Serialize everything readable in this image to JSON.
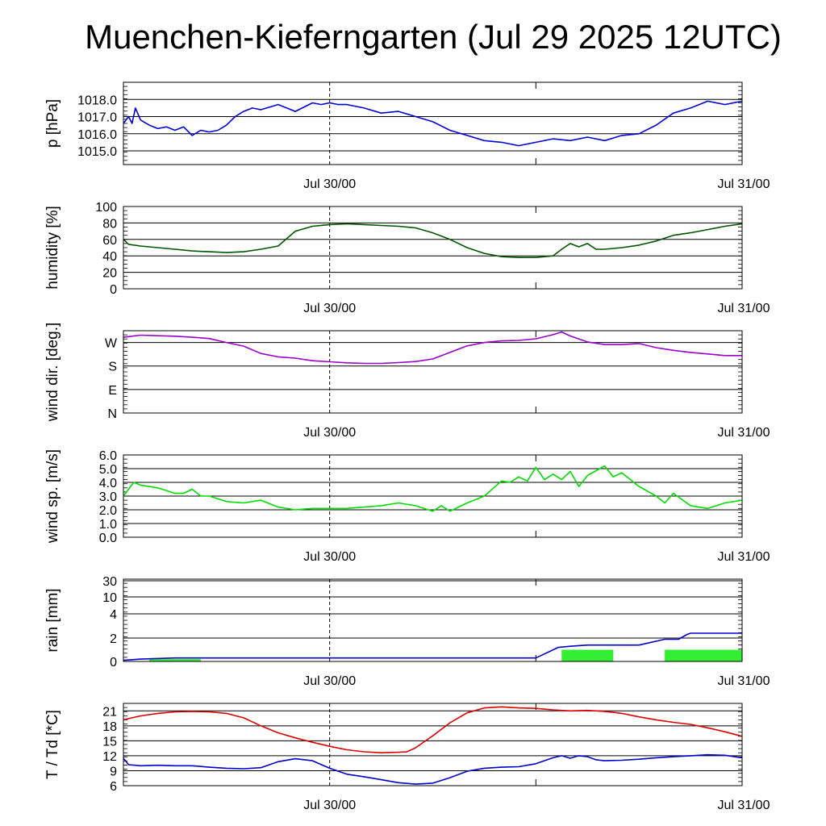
{
  "title": "Muenchen-Kieferngarten (Jul 29 2025 12UTC)",
  "colors": {
    "pressure": "#0000dd",
    "humidity": "#005500",
    "wind_dir": "#9900cc",
    "wind_speed": "#00dd00",
    "rain_line": "#0000cc",
    "rain_bar": "#33ee33",
    "temperature": "#dd0000",
    "dewpoint": "#0000cc"
  },
  "chart_data": [
    {
      "type": "line",
      "ylabel": "p [hPa]",
      "x_ticks": [
        "Jul 30/00",
        "Jul 31/00"
      ],
      "x_unit": "hours since Jul 29 12UTC",
      "xlim": [
        0,
        36
      ],
      "ylim": [
        1014.2,
        1019.0
      ],
      "yticks": [
        "1015.0",
        "1016.0",
        "1017.0",
        "1018.0"
      ],
      "ytick_values": [
        1015.0,
        1016.0,
        1017.0,
        1018.0
      ],
      "series": [
        {
          "x": [
            0,
            0.3,
            0.5,
            0.7,
            1,
            1.5,
            2,
            2.5,
            3,
            3.5,
            4,
            4.5,
            5,
            5.5,
            6,
            6.5,
            7,
            7.5,
            8,
            9,
            10,
            11,
            11.5,
            12,
            12.5,
            13,
            14,
            15,
            16,
            17,
            18,
            19,
            20,
            21,
            22,
            23,
            24,
            25,
            26,
            27,
            28,
            29,
            30,
            31,
            32,
            33,
            34,
            35,
            36
          ],
          "y": [
            1016.6,
            1017.0,
            1016.6,
            1017.5,
            1016.8,
            1016.5,
            1016.3,
            1016.4,
            1016.2,
            1016.4,
            1015.9,
            1016.2,
            1016.1,
            1016.2,
            1016.5,
            1017.0,
            1017.3,
            1017.5,
            1017.4,
            1017.7,
            1017.3,
            1017.8,
            1017.7,
            1017.8,
            1017.7,
            1017.7,
            1017.5,
            1017.2,
            1017.3,
            1017.0,
            1016.7,
            1016.2,
            1015.9,
            1015.6,
            1015.5,
            1015.3,
            1015.5,
            1015.7,
            1015.6,
            1015.8,
            1015.6,
            1015.9,
            1016.0,
            1016.5,
            1017.2,
            1017.5,
            1017.9,
            1017.7,
            1017.9
          ]
        }
      ]
    },
    {
      "type": "line",
      "ylabel": "humidity [%]",
      "x_ticks": [
        "Jul 30/00",
        "Jul 31/00"
      ],
      "xlim": [
        0,
        36
      ],
      "ylim": [
        0,
        100
      ],
      "yticks": [
        "0",
        "20",
        "40",
        "60",
        "80",
        "100"
      ],
      "ytick_values": [
        0,
        20,
        40,
        60,
        80,
        100
      ],
      "series": [
        {
          "x": [
            0,
            0.3,
            1,
            2,
            3,
            4,
            5,
            6,
            7,
            8,
            9,
            10,
            11,
            12,
            13,
            14,
            15,
            16,
            17,
            18,
            19,
            20,
            21,
            22,
            23,
            24,
            25,
            25.5,
            26,
            26.5,
            27,
            27.5,
            28,
            29,
            30,
            31,
            32,
            33,
            34,
            35,
            36
          ],
          "y": [
            60,
            54,
            52,
            50,
            48,
            46,
            45,
            44,
            45,
            48,
            52,
            70,
            76,
            78,
            79,
            78,
            77,
            76,
            74,
            68,
            60,
            50,
            43,
            39,
            38,
            38,
            40,
            48,
            55,
            51,
            55,
            48,
            48,
            50,
            53,
            58,
            65,
            68,
            72,
            76,
            79
          ]
        }
      ]
    },
    {
      "type": "line",
      "ylabel": "wind dir. [deg.]",
      "x_ticks": [
        "Jul 30/00",
        "Jul 31/00"
      ],
      "xlim": [
        0,
        36
      ],
      "ylim": [
        0,
        315
      ],
      "yticks": [
        "N",
        "E",
        "S",
        "W"
      ],
      "ytick_values": [
        0,
        90,
        180,
        270
      ],
      "series": [
        {
          "x": [
            0,
            1,
            2,
            3,
            4,
            5,
            6,
            7,
            8,
            9,
            10,
            11,
            12,
            13,
            14,
            15,
            16,
            17,
            18,
            19,
            20,
            21,
            22,
            23,
            24,
            25,
            25.5,
            26,
            27,
            28,
            29,
            30,
            31,
            32,
            33,
            34,
            35,
            36
          ],
          "y": [
            290,
            298,
            296,
            294,
            290,
            285,
            270,
            256,
            228,
            215,
            210,
            200,
            196,
            192,
            190,
            190,
            193,
            197,
            207,
            232,
            257,
            270,
            276,
            278,
            284,
            300,
            310,
            295,
            272,
            262,
            262,
            266,
            250,
            240,
            232,
            226,
            220,
            220
          ]
        }
      ]
    },
    {
      "type": "line",
      "ylabel": "wind sp. [m/s]",
      "x_ticks": [
        "Jul 30/00",
        "Jul 31/00"
      ],
      "xlim": [
        0,
        36
      ],
      "ylim": [
        0,
        6
      ],
      "yticks": [
        "0.0",
        "1.0",
        "2.0",
        "3.0",
        "4.0",
        "5.0",
        "6.0"
      ],
      "ytick_values": [
        0,
        1,
        2,
        3,
        4,
        5,
        6
      ],
      "series": [
        {
          "x": [
            0,
            0.3,
            0.6,
            1,
            2,
            3,
            3.5,
            4,
            4.5,
            5,
            6,
            7,
            8,
            9,
            10,
            11,
            12,
            13,
            14,
            15,
            16,
            17,
            18,
            18.5,
            19,
            19.5,
            20,
            21,
            22,
            22.5,
            23,
            23.5,
            24,
            24.5,
            25,
            25.5,
            26,
            26.5,
            27,
            28,
            28.5,
            29,
            30,
            31,
            31.5,
            32,
            33,
            34,
            35,
            36
          ],
          "y": [
            3.0,
            3.5,
            4.0,
            3.8,
            3.6,
            3.2,
            3.2,
            3.5,
            3.0,
            3.0,
            2.6,
            2.5,
            2.7,
            2.2,
            2.0,
            2.1,
            2.1,
            2.1,
            2.2,
            2.3,
            2.5,
            2.3,
            1.9,
            2.3,
            1.9,
            2.2,
            2.5,
            3.0,
            4.1,
            4.0,
            4.4,
            4.1,
            5.1,
            4.2,
            4.6,
            4.2,
            4.8,
            3.7,
            4.5,
            5.2,
            4.4,
            4.7,
            3.7,
            3.0,
            2.5,
            3.2,
            2.3,
            2.1,
            2.5,
            2.7
          ]
        }
      ]
    },
    {
      "type": "bar",
      "ylabel": "rain [mm]",
      "x_ticks": [
        "Jul 30/00",
        "Jul 31/00"
      ],
      "xlim": [
        0,
        36
      ],
      "yscale": "nonlinear",
      "yticks": [
        "0",
        "2",
        "4",
        "10",
        "30"
      ],
      "ytick_values": [
        0,
        2,
        4,
        10,
        30
      ],
      "series": [
        {
          "type": "line",
          "x": [
            0,
            1,
            3,
            12,
            24,
            25.3,
            26,
            27,
            30,
            31.5,
            32.3,
            32.8,
            33,
            36
          ],
          "y": [
            0.1,
            0.2,
            0.3,
            0.3,
            0.3,
            1.2,
            1.3,
            1.4,
            1.4,
            1.9,
            1.9,
            2.3,
            2.4,
            2.4
          ]
        },
        {
          "type": "bar",
          "x_start": [
            1.5,
            25.5,
            31.5
          ],
          "x_end": [
            4.5,
            28.5,
            36.0
          ],
          "values": [
            0.2,
            1.0,
            1.0
          ]
        }
      ]
    },
    {
      "type": "line",
      "ylabel": "T / Td [*C]",
      "x_ticks": [
        "Jul 30/00",
        "Jul 31/00"
      ],
      "xlim": [
        0,
        36
      ],
      "ylim": [
        6,
        22.5
      ],
      "yticks": [
        "6",
        "9",
        "12",
        "15",
        "18",
        "21"
      ],
      "ytick_values": [
        6,
        9,
        12,
        15,
        18,
        21
      ],
      "series": [
        {
          "x": [
            0,
            0.5,
            1,
            2,
            3,
            4,
            5,
            6,
            7,
            8,
            9,
            10,
            11,
            12,
            13,
            14,
            15,
            16,
            16.5,
            17,
            18,
            19,
            20,
            21,
            22,
            23,
            24,
            25,
            26,
            27,
            28,
            29,
            30,
            31,
            32,
            33,
            34,
            35,
            36
          ],
          "y": [
            19.2,
            19.6,
            20.0,
            20.5,
            20.8,
            20.9,
            20.8,
            20.5,
            19.6,
            18.0,
            16.6,
            15.6,
            14.7,
            13.9,
            13.2,
            12.8,
            12.6,
            12.7,
            12.8,
            13.6,
            16.0,
            18.6,
            20.6,
            21.6,
            21.8,
            21.6,
            21.5,
            21.2,
            21.0,
            21.1,
            20.9,
            20.5,
            19.8,
            19.2,
            18.7,
            18.3,
            17.6,
            16.8,
            15.9
          ]
        },
        {
          "x": [
            0,
            0.3,
            1,
            2,
            3,
            4,
            5,
            6,
            7,
            8,
            9,
            10,
            11,
            12,
            13,
            14,
            15,
            16,
            17,
            18,
            19,
            20,
            21,
            22,
            23,
            24,
            25,
            25.5,
            26,
            26.5,
            27,
            27.5,
            28,
            29,
            30,
            31,
            32,
            33,
            34,
            35,
            36
          ],
          "y": [
            11.5,
            10.2,
            10.0,
            10.1,
            10.0,
            10.0,
            9.7,
            9.5,
            9.4,
            9.6,
            10.8,
            11.4,
            11.0,
            9.5,
            8.3,
            7.8,
            7.2,
            6.6,
            6.3,
            6.5,
            7.6,
            8.9,
            9.5,
            9.7,
            9.8,
            10.4,
            11.6,
            12.0,
            11.5,
            12.0,
            11.8,
            11.2,
            11.0,
            11.1,
            11.3,
            11.6,
            11.8,
            12.0,
            12.2,
            12.1,
            11.6
          ]
        }
      ]
    }
  ]
}
